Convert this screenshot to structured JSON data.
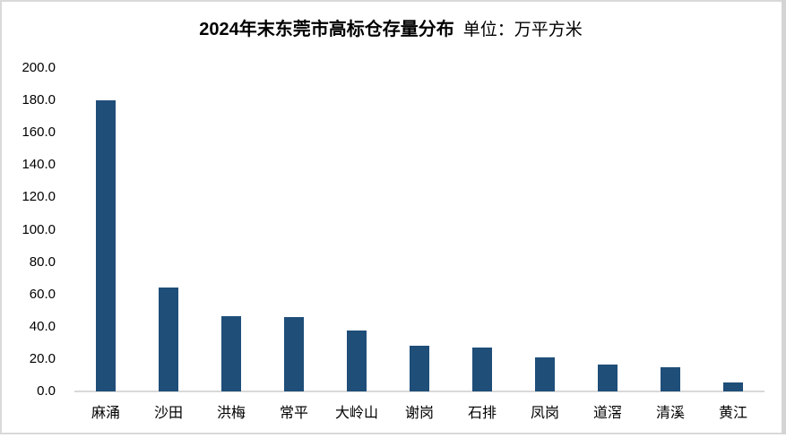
{
  "page": {
    "background_color": "#FFFFFF",
    "frame_border_color": "#D9D9D9"
  },
  "chart_data": {
    "type": "bar",
    "title": "2024年末东莞市高标仓存量分布",
    "unit_label": "单位：万平方米",
    "categories": [
      "麻涌",
      "沙田",
      "洪梅",
      "常平",
      "大岭山",
      "谢岗",
      "石排",
      "凤岗",
      "道滘",
      "清溪",
      "黄江"
    ],
    "values": [
      180.0,
      64.5,
      46.5,
      46.0,
      37.5,
      28.3,
      27.3,
      21.0,
      16.5,
      15.0,
      5.8
    ],
    "xlabel": "",
    "ylabel": "",
    "ylim": [
      0,
      200
    ],
    "ytick_interval": 20,
    "ytick_labels": [
      "0.0",
      "20.0",
      "40.0",
      "60.0",
      "80.0",
      "100.0",
      "120.0",
      "140.0",
      "160.0",
      "180.0",
      "200.0"
    ],
    "grid": false,
    "legend": "none",
    "bar_color": "#1F4E79",
    "axis_line_color": "#D9D9D9",
    "text_color": "#000000"
  }
}
